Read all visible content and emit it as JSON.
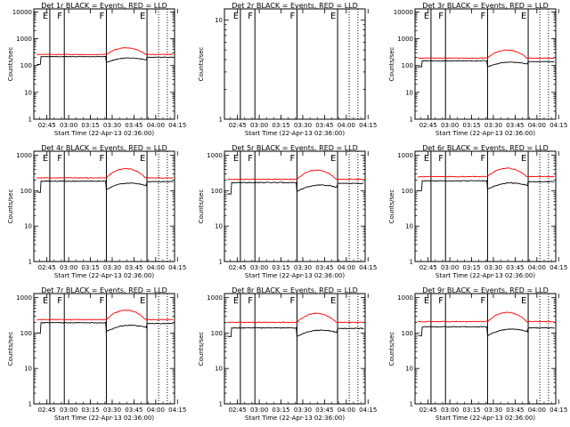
{
  "chart_data": {
    "type": "line",
    "x_ticks": [
      "02:45",
      "03:00",
      "03:15",
      "03:30",
      "03:45",
      "04:00",
      "04:15"
    ],
    "x_range_minutes": [
      36,
      133
    ],
    "xlabel": "Start Time (22-Apr-13 02:36:00)",
    "ylabel": "Counts/sec",
    "yscale": "log",
    "line_colors": {
      "events": "#000000",
      "lld": "#ff0000"
    },
    "markers": {
      "solid": [
        {
          "t": 47,
          "label": "E"
        },
        {
          "t": 57,
          "label": "F"
        },
        {
          "t": 86,
          "label": "F"
        },
        {
          "t": 114,
          "label": "E"
        }
      ],
      "dotted": [
        122,
        128
      ]
    },
    "panels": [
      {
        "title": "Det 1r BLACK = Events, RED = LLD",
        "ylim": [
          1,
          13000
        ],
        "y_ticks": [
          1,
          10,
          100,
          1000,
          10000
        ],
        "y_tick_labels": [
          "1",
          "10",
          "100",
          "1000",
          "10000"
        ],
        "lld": {
          "base": 260,
          "peak": 460
        },
        "events": {
          "base": 215,
          "low": 110,
          "dip": 130,
          "end": 205
        }
      },
      {
        "title": "Det 2r BLACK = Events, RED = LLD",
        "ylim": [
          1,
          13
        ],
        "y_ticks": [
          1,
          10
        ],
        "y_tick_labels": [
          "1",
          "10"
        ],
        "lld": null,
        "events": null
      },
      {
        "title": "Det 3r BLACK = Events, RED = LLD",
        "ylim": [
          1,
          13000
        ],
        "y_ticks": [
          1,
          10,
          100,
          1000,
          10000
        ],
        "y_tick_labels": [
          "1",
          "10",
          "100",
          "1000",
          "10000"
        ],
        "lld": {
          "base": 190,
          "peak": 380
        },
        "events": {
          "base": 150,
          "low": 90,
          "dip": 90,
          "end": 140
        }
      },
      {
        "title": "Det 4r BLACK = Events, RED = LLD",
        "ylim": [
          1,
          1300
        ],
        "y_ticks": [
          1,
          10,
          100,
          1000
        ],
        "y_tick_labels": [
          "1",
          "10",
          "100",
          "1000"
        ],
        "lld": {
          "base": 230,
          "peak": 420
        },
        "events": {
          "base": 185,
          "low": 90,
          "dip": 110,
          "end": 180
        }
      },
      {
        "title": "Det 5r BLACK = Events, RED = LLD",
        "ylim": [
          1,
          1300
        ],
        "y_ticks": [
          1,
          10,
          100,
          1000
        ],
        "y_tick_labels": [
          "1",
          "10",
          "100",
          "1000"
        ],
        "lld": {
          "base": 210,
          "peak": 380
        },
        "events": {
          "base": 170,
          "low": 80,
          "dip": 95,
          "end": 160
        }
      },
      {
        "title": "Det 6r BLACK = Events, RED = LLD",
        "ylim": [
          1,
          1300
        ],
        "y_ticks": [
          1,
          10,
          100,
          1000
        ],
        "y_tick_labels": [
          "1",
          "10",
          "100",
          "1000"
        ],
        "lld": {
          "base": 250,
          "peak": 430
        },
        "events": {
          "base": 190,
          "low": 100,
          "dip": 110,
          "end": 180
        }
      },
      {
        "title": "Det 7r BLACK = Events, RED = LLD",
        "ylim": [
          1,
          1300
        ],
        "y_ticks": [
          1,
          10,
          100,
          1000
        ],
        "y_tick_labels": [
          "1",
          "10",
          "100",
          "1000"
        ],
        "lld": {
          "base": 240,
          "peak": 440
        },
        "events": {
          "base": 195,
          "low": 100,
          "dip": 110,
          "end": 185
        }
      },
      {
        "title": "Det 8r BLACK = Events, RED = LLD",
        "ylim": [
          1,
          1300
        ],
        "y_ticks": [
          1,
          10,
          100,
          1000
        ],
        "y_tick_labels": [
          "1",
          "10",
          "100",
          "1000"
        ],
        "lld": {
          "base": 200,
          "peak": 360
        },
        "events": {
          "base": 140,
          "low": 80,
          "dip": 80,
          "end": 135
        }
      },
      {
        "title": "Det 9r BLACK = Events, RED = LLD",
        "ylim": [
          1,
          1300
        ],
        "y_ticks": [
          1,
          10,
          100,
          1000
        ],
        "y_tick_labels": [
          "1",
          "10",
          "100",
          "1000"
        ],
        "lld": {
          "base": 210,
          "peak": 380
        },
        "events": {
          "base": 150,
          "low": 85,
          "dip": 85,
          "end": 140
        }
      }
    ]
  }
}
